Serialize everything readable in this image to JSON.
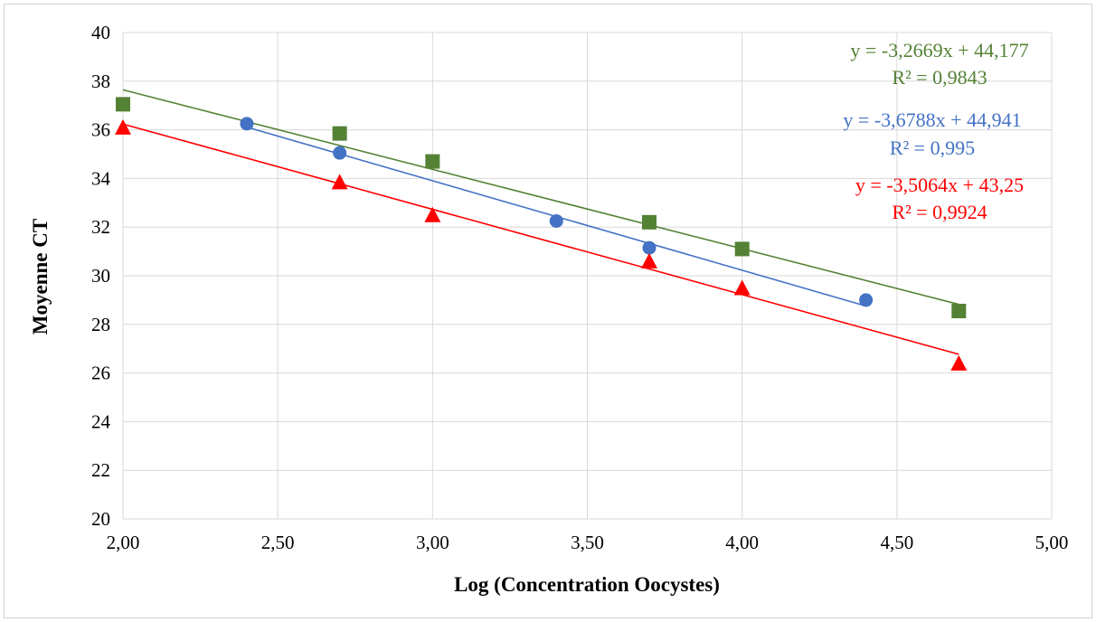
{
  "chart_data": {
    "type": "scatter",
    "xlabel": "Log (Concentration Oocystes)",
    "ylabel": "Moyenne CT",
    "xlim": [
      2.0,
      5.0
    ],
    "ylim": [
      20,
      40
    ],
    "x_ticks": [
      "2,00",
      "2,50",
      "3,00",
      "3,50",
      "4,00",
      "4,50",
      "5,00"
    ],
    "y_ticks": [
      "20",
      "22",
      "24",
      "26",
      "28",
      "30",
      "32",
      "34",
      "36",
      "38",
      "40"
    ],
    "grid": "on",
    "legend": "none",
    "series": [
      {
        "color": "#548235",
        "marker": "square",
        "points": [
          [
            2.0,
            37.05
          ],
          [
            2.7,
            35.85
          ],
          [
            3.0,
            34.7
          ],
          [
            3.7,
            32.2
          ],
          [
            4.0,
            31.1
          ],
          [
            4.7,
            28.55
          ]
        ],
        "trendline": {
          "slope": -3.2669,
          "intercept": 44.177
        },
        "equation": "y = -3,2669x + 44,177",
        "r_squared": "R² = 0,9843"
      },
      {
        "color": "#4472C4",
        "marker": "circle",
        "points": [
          [
            2.4,
            36.25
          ],
          [
            2.7,
            35.05
          ],
          [
            3.4,
            32.25
          ],
          [
            3.7,
            31.15
          ],
          [
            4.4,
            29.0
          ]
        ],
        "trendline": {
          "slope": -3.6788,
          "intercept": 44.941
        },
        "equation": "y = -3,6788x + 44,941",
        "r_squared": "R² = 0,995"
      },
      {
        "color": "#FF0000",
        "marker": "triangle",
        "points": [
          [
            2.0,
            36.1
          ],
          [
            2.7,
            33.85
          ],
          [
            3.0,
            32.5
          ],
          [
            3.7,
            30.6
          ],
          [
            4.0,
            29.5
          ],
          [
            4.7,
            26.4
          ]
        ],
        "trendline": {
          "slope": -3.5064,
          "intercept": 43.25
        },
        "equation": "y = -3,5064x + 43,25",
        "r_squared": "R² = 0,9924"
      }
    ]
  }
}
